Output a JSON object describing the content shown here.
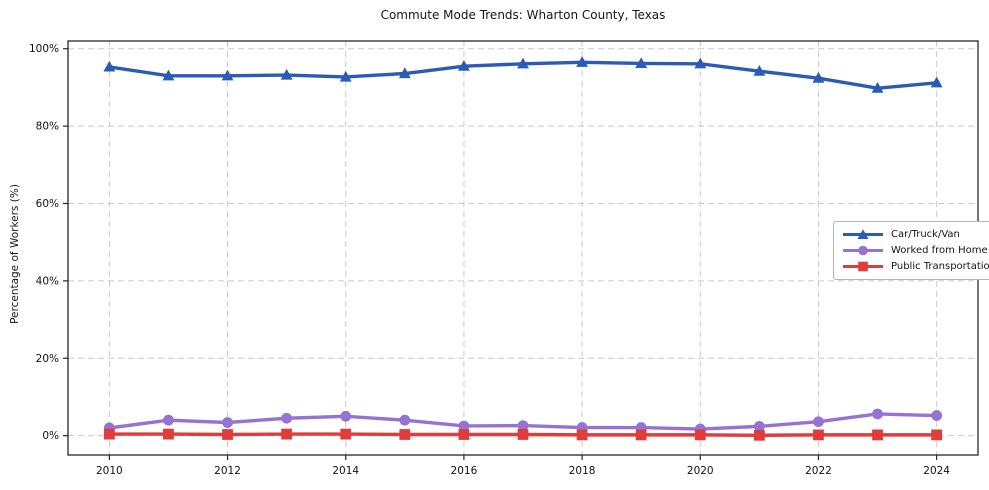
{
  "title": "Commute Mode Trends: Wharton County, Texas",
  "chart_data": {
    "type": "line",
    "title": "Commute Mode Trends: Wharton County, Texas",
    "xlabel": "",
    "ylabel": "Percentage of Workers (%)",
    "grid": true,
    "grid_style": "dashed",
    "legend_position": "center right",
    "background_color": "#ffffff",
    "xlim": [
      2009.3,
      2024.7
    ],
    "ylim": [
      -5,
      102
    ],
    "x": [
      2010,
      2011,
      2012,
      2013,
      2014,
      2015,
      2016,
      2017,
      2018,
      2019,
      2020,
      2021,
      2022,
      2023,
      2024
    ],
    "x_ticks": [
      2010,
      2012,
      2014,
      2016,
      2018,
      2020,
      2022,
      2024
    ],
    "x_tick_labels": [
      "2010",
      "2012",
      "2014",
      "2016",
      "2018",
      "2020",
      "2022",
      "2024"
    ],
    "y_ticks": [
      0,
      20,
      40,
      60,
      80,
      100
    ],
    "y_tick_labels": [
      "0%",
      "20%",
      "40%",
      "60%",
      "80%",
      "100%"
    ],
    "series": [
      {
        "name": "Car/Truck/Van",
        "color": "#2b5cb5",
        "marker": "triangle",
        "values": [
          95.3,
          93.0,
          93.0,
          93.2,
          92.7,
          93.6,
          95.5,
          96.1,
          96.5,
          96.2,
          96.1,
          94.2,
          92.4,
          89.8,
          91.2
        ]
      },
      {
        "name": "Worked from Home",
        "color": "#9673d2",
        "marker": "circle",
        "values": [
          2.0,
          4.0,
          3.4,
          4.5,
          5.0,
          4.0,
          2.5,
          2.6,
          2.1,
          2.1,
          1.7,
          2.4,
          3.6,
          5.6,
          5.2
        ]
      },
      {
        "name": "Public Transportation",
        "color": "#e13c3c",
        "marker": "square",
        "values": [
          0.4,
          0.4,
          0.3,
          0.4,
          0.4,
          0.3,
          0.3,
          0.3,
          0.2,
          0.2,
          0.2,
          0.1,
          0.2,
          0.2,
          0.2
        ]
      }
    ]
  }
}
